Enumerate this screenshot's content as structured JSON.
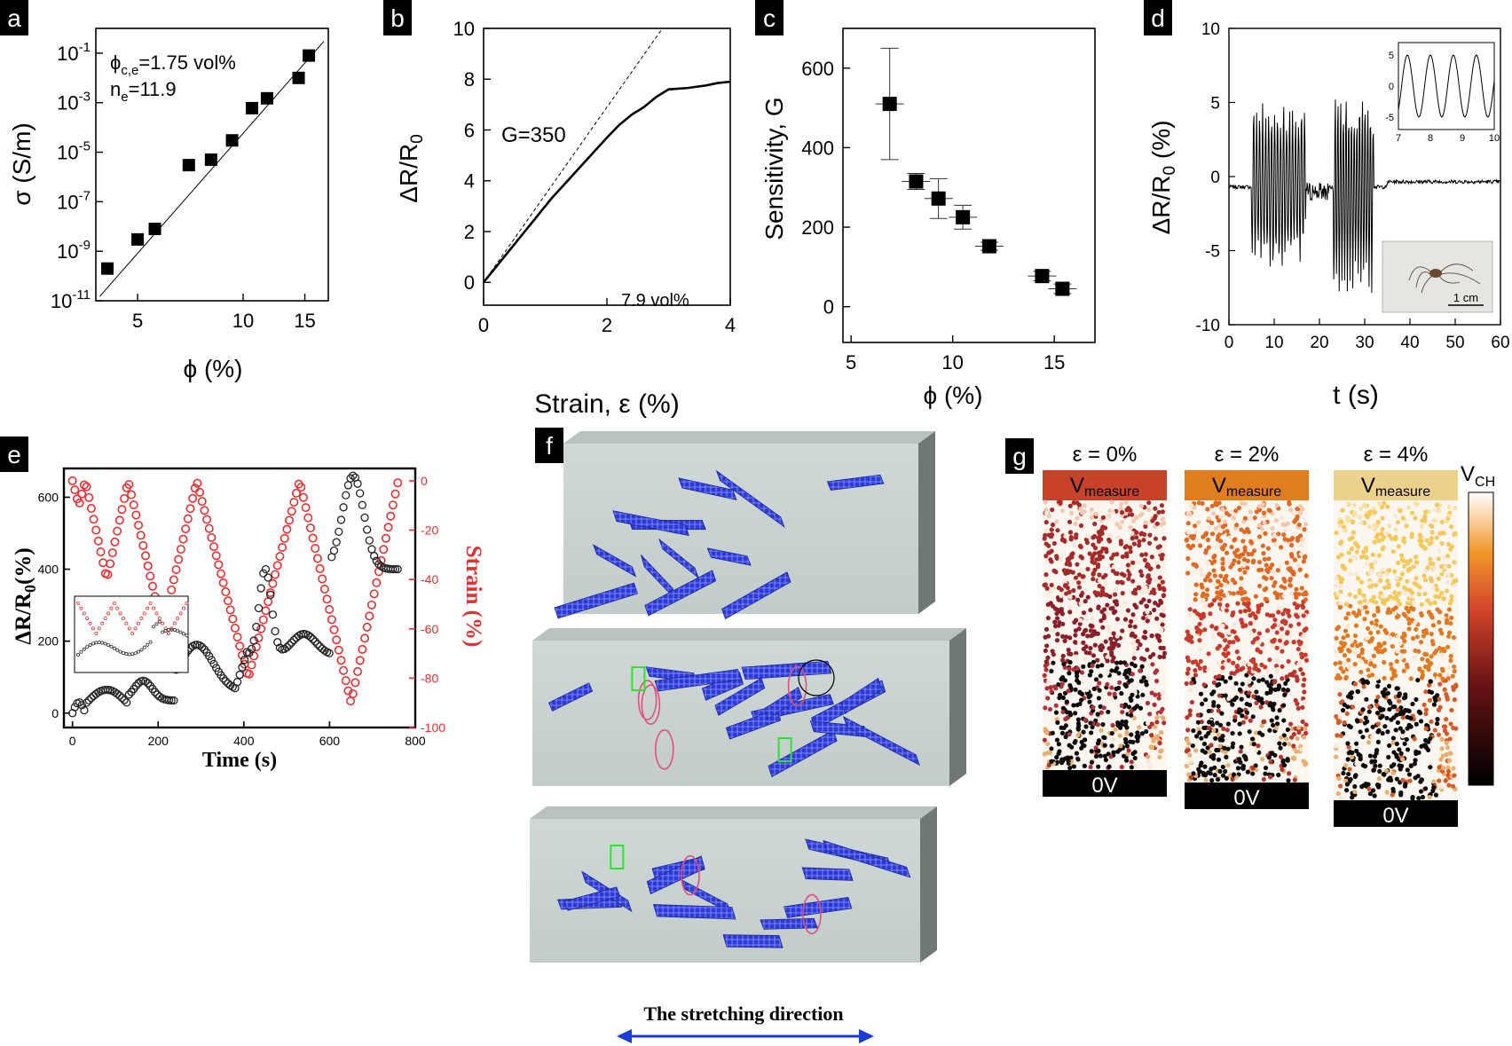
{
  "panels": {
    "a": {
      "letter": "a",
      "ylabel": "σ (S/m)",
      "xlabel": "ϕ (%)",
      "yticks": [
        {
          "b": "10",
          "e": "-1",
          "v": -1
        },
        {
          "b": "10",
          "e": "-3",
          "v": -3
        },
        {
          "b": "10",
          "e": "-5",
          "v": -5
        },
        {
          "b": "10",
          "e": "-7",
          "v": -7
        },
        {
          "b": "10",
          "e": "-9",
          "v": -9
        },
        {
          "b": "10",
          "e": "-11",
          "v": -11
        }
      ],
      "xticks": [
        "5",
        "10",
        "15"
      ],
      "phi_label": "ϕ",
      "phi_sub": "c,e",
      "phi_value": "=1.75 vol%",
      "n_label": "n",
      "n_sub": "e",
      "n_value": "=11.9"
    },
    "b": {
      "letter": "b",
      "ylabel_main": "ΔR/R",
      "ylabel_sub": "0",
      "xlabel": "Strain, ε (%)",
      "yticks": [
        "10",
        "8",
        "6",
        "4",
        "2",
        "0"
      ],
      "xticks": [
        "0",
        "2",
        "4"
      ],
      "gauge_label": "G=350",
      "vol_label": "7.9 vol%"
    },
    "c": {
      "letter": "c",
      "ylabel": "Sensitivity, G",
      "xlabel": "ϕ (%)",
      "yticks": [
        "600",
        "400",
        "200",
        "0"
      ],
      "xticks": [
        "5",
        "10",
        "15"
      ]
    },
    "d": {
      "letter": "d",
      "ylabel_main": "ΔR/R",
      "ylabel_sub": "0",
      "ylabel_unit": " (%)",
      "xlabel": "t (s)",
      "yticks": [
        "10",
        "5",
        "0",
        "-5",
        "-10"
      ],
      "xticks": [
        "0",
        "10",
        "20",
        "30",
        "40",
        "50",
        "60"
      ],
      "inset_yticks": [
        "5",
        "0",
        "-5"
      ],
      "inset_xticks": [
        "7",
        "8",
        "9",
        "10"
      ],
      "scale_label": "1 cm"
    },
    "e": {
      "letter": "e",
      "ylabel_main": "ΔR/R",
      "ylabel_sub": "0",
      "ylabel_unit": "(%)",
      "ylabel_right": "Strain (%)",
      "xlabel": "Time (s)",
      "yticks_left": [
        "600",
        "400",
        "200",
        "0"
      ],
      "yticks_right": [
        "0",
        "-20",
        "-40",
        "-60",
        "-80",
        "-100"
      ],
      "xticks": [
        "0",
        "200",
        "400",
        "600",
        "800"
      ]
    },
    "f": {
      "letter": "f",
      "caption": "The stretching direction"
    },
    "g": {
      "letter": "g",
      "colorbar_label_main": "V",
      "colorbar_label_sub": "CH",
      "columns": [
        {
          "strain": "ε = 0%",
          "top_main": "V",
          "top_sub": "measure",
          "bottom": "0V",
          "top_color": "#c8422a"
        },
        {
          "strain": "ε = 2%",
          "top_main": "V",
          "top_sub": "measure",
          "bottom": "0V",
          "top_color": "#e07d1f"
        },
        {
          "strain": "ε = 4%",
          "top_main": "V",
          "top_sub": "measure",
          "bottom": "0V",
          "top_color": "#ecd18a"
        }
      ]
    }
  },
  "chart_data": [
    {
      "panel": "a",
      "type": "scatter",
      "xlabel": "ϕ (%)",
      "ylabel": "σ (S/m)",
      "xscale": "log",
      "yscale": "log",
      "ylim": [
        1e-11,
        1
      ],
      "x": [
        4.1,
        5.0,
        5.6,
        7.0,
        8.1,
        9.3,
        10.6,
        11.7,
        14.4,
        15.4
      ],
      "y": [
        2e-10,
        3e-09,
        8e-09,
        3e-06,
        5e-06,
        3e-05,
        0.0006,
        0.0015,
        0.01,
        0.08
      ],
      "fit": [
        [
          3.9,
          1.5e-11
        ],
        [
          17.0,
          0.3
        ]
      ]
    },
    {
      "panel": "b",
      "type": "line",
      "xlabel": "Strain, ε (%)",
      "ylabel": "ΔR/R0",
      "xlim": [
        0,
        4
      ],
      "ylim": [
        -0.9,
        10
      ],
      "x": [
        0,
        0.2,
        0.5,
        0.8,
        1.1,
        1.4,
        1.7,
        2.0,
        2.2,
        2.4,
        2.6,
        2.8,
        3.0,
        3.3,
        3.6,
        3.8,
        4.0
      ],
      "y": [
        0,
        0.6,
        1.5,
        2.4,
        3.3,
        4.1,
        4.9,
        5.7,
        6.2,
        6.6,
        6.9,
        7.3,
        7.6,
        7.65,
        7.75,
        7.85,
        7.9
      ],
      "tangent": [
        [
          0,
          0
        ],
        [
          2.9,
          10
        ]
      ]
    },
    {
      "panel": "c",
      "type": "scatter",
      "xlabel": "ϕ (%)",
      "ylabel": "Sensitivity, G",
      "ylim": [
        -90,
        700
      ],
      "x": [
        6.9,
        8.2,
        9.3,
        10.5,
        11.8,
        14.4,
        15.4
      ],
      "y": [
        510,
        315,
        272,
        225,
        152,
        77,
        45
      ],
      "yerr": [
        140,
        20,
        50,
        30,
        10,
        12,
        12
      ]
    },
    {
      "panel": "d",
      "type": "line",
      "xlabel": "t (s)",
      "ylabel": "ΔR/R0 (%)",
      "xlim": [
        0,
        60
      ],
      "ylim": [
        -10,
        10
      ]
    },
    {
      "panel": "e",
      "type": "line",
      "xlabel": "Time (s)",
      "ylabel": "ΔR/R0(%)",
      "ylabel_right": "Strain (%)",
      "xlim": [
        0,
        800
      ],
      "ylim": [
        -40,
        680
      ],
      "ylim_right": [
        -100,
        5
      ]
    }
  ]
}
